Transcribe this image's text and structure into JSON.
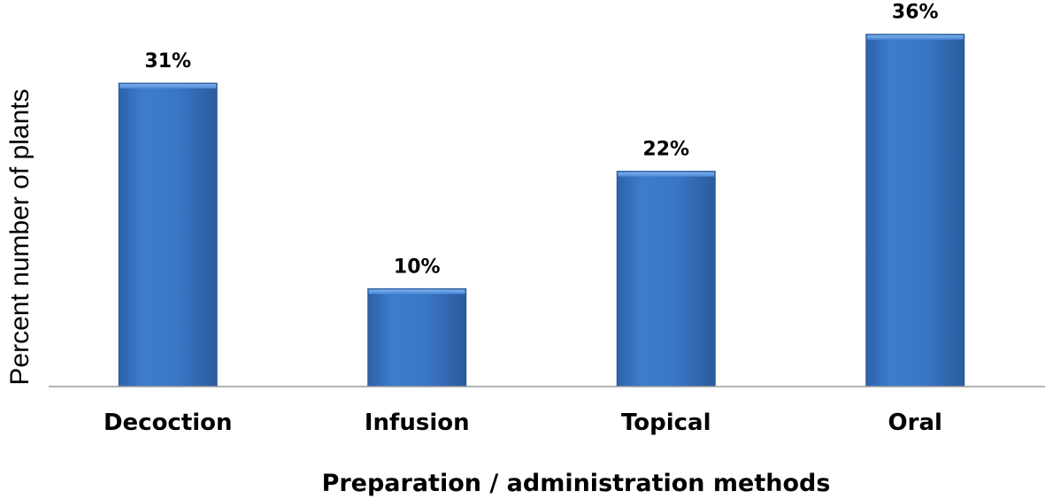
{
  "chart_data": {
    "type": "bar",
    "title": "",
    "xlabel": "Preparation / administration methods",
    "ylabel": "Percent number of plants",
    "categories": [
      "Decoction",
      "Infusion",
      "Topical",
      "Oral"
    ],
    "values": [
      31,
      10,
      22,
      36
    ],
    "value_labels": [
      "31%",
      "10%",
      "22%",
      "36%"
    ],
    "ylim": [
      0,
      39.5
    ],
    "grid": false,
    "legend": "none",
    "bar_color": "#3a78c9"
  }
}
